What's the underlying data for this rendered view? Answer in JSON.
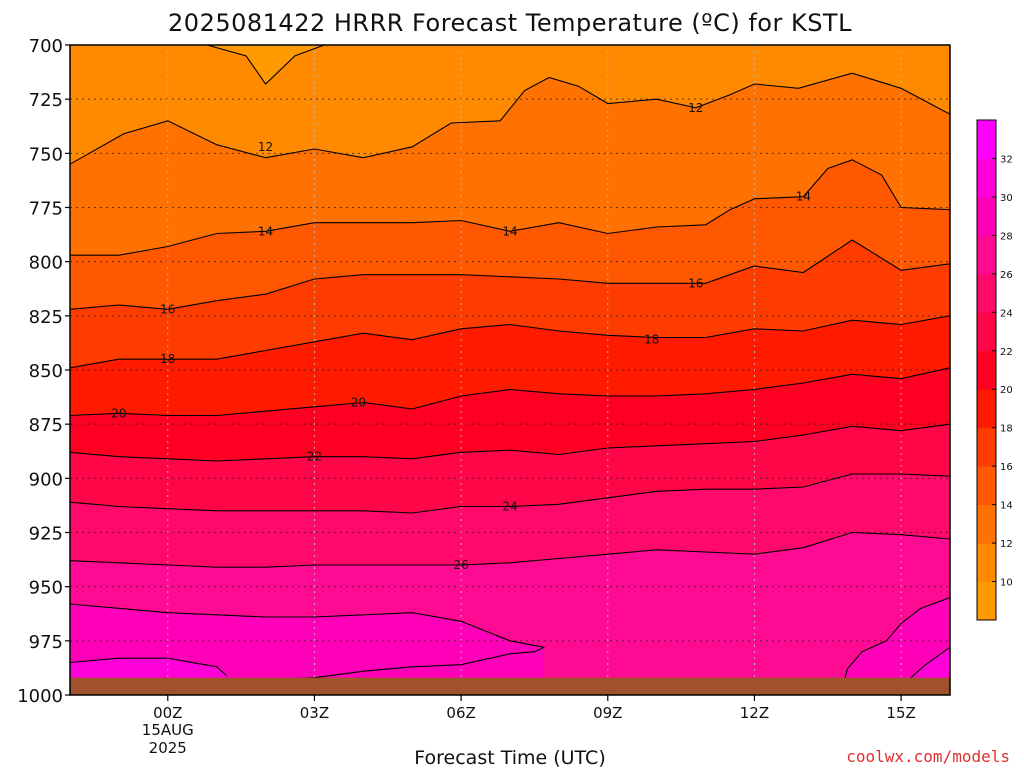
{
  "chart_data": {
    "type": "heatmap",
    "title": "2025081422 HRRR Forecast Temperature (ºC) for KSTL",
    "xlabel": "Forecast Time (UTC)",
    "ylabel": "",
    "credit": "coolwx.com/models",
    "x_ticks": [
      {
        "x": 0,
        "label": "00Z",
        "sublabel1": "15AUG",
        "sublabel2": "2025"
      },
      {
        "x": 3,
        "label": "03Z"
      },
      {
        "x": 6,
        "label": "06Z"
      },
      {
        "x": 9,
        "label": "09Z"
      },
      {
        "x": 12,
        "label": "12Z"
      },
      {
        "x": 15,
        "label": "15Z"
      }
    ],
    "xlim": [
      -2,
      16
    ],
    "y_ticks": [
      700,
      725,
      750,
      775,
      800,
      825,
      850,
      875,
      900,
      925,
      950,
      975,
      1000
    ],
    "ylim": [
      700,
      1000
    ],
    "grid": true,
    "colorbar": {
      "placement": "right",
      "ticks": [
        10,
        12,
        14,
        16,
        18,
        20,
        22,
        24,
        26,
        28,
        30,
        32
      ],
      "colors": [
        "#ff9a00",
        "#ff8a00",
        "#ff7100",
        "#ff5800",
        "#ff3c00",
        "#ff1a00",
        "#ff0022",
        "#ff0648",
        "#ff0a6a",
        "#ff0a92",
        "#ff00b8",
        "#ff00d8",
        "#ff00ff"
      ]
    },
    "contours": [
      {
        "level": 12,
        "label": "12",
        "label_points": [
          [
            2.0,
            747
          ],
          [
            10.8,
            729
          ]
        ],
        "points": [
          [
            -2,
            755
          ],
          [
            -0.9,
            741
          ],
          [
            0,
            735
          ],
          [
            1,
            746
          ],
          [
            2,
            752
          ],
          [
            3,
            748
          ],
          [
            4,
            752
          ],
          [
            5,
            747
          ],
          [
            5.8,
            736
          ],
          [
            6.8,
            735
          ],
          [
            7.3,
            721
          ],
          [
            7.8,
            715
          ],
          [
            8.4,
            719
          ],
          [
            9,
            727
          ],
          [
            10,
            725
          ],
          [
            10.8,
            729
          ],
          [
            11.5,
            723
          ],
          [
            12,
            718
          ],
          [
            12.9,
            720
          ],
          [
            14,
            713
          ],
          [
            15,
            720
          ],
          [
            16,
            732
          ]
        ]
      },
      {
        "level": 12,
        "label": "",
        "label_points": [],
        "points": [
          [
            0.8,
            700
          ],
          [
            1.6,
            705
          ],
          [
            2.0,
            718
          ],
          [
            2.6,
            705
          ],
          [
            3.2,
            700
          ]
        ]
      },
      {
        "level": 14,
        "label": "14",
        "label_points": [
          [
            2.0,
            786
          ],
          [
            7.0,
            786
          ],
          [
            13.0,
            770
          ]
        ],
        "points": [
          [
            -2,
            797
          ],
          [
            -1,
            797
          ],
          [
            0,
            793
          ],
          [
            1,
            787
          ],
          [
            2,
            786
          ],
          [
            3,
            782
          ],
          [
            4,
            782
          ],
          [
            5,
            782
          ],
          [
            6,
            781
          ],
          [
            7,
            786
          ],
          [
            8,
            782
          ],
          [
            9,
            787
          ],
          [
            10,
            784
          ],
          [
            11,
            783
          ],
          [
            11.5,
            776
          ],
          [
            12,
            771
          ],
          [
            13,
            770
          ],
          [
            13.5,
            757
          ],
          [
            14,
            753
          ],
          [
            14.6,
            760
          ],
          [
            15,
            775
          ],
          [
            16,
            776
          ]
        ]
      },
      {
        "level": 16,
        "label": "16",
        "label_points": [
          [
            0.0,
            822
          ],
          [
            10.8,
            810
          ]
        ],
        "points": [
          [
            -2,
            822
          ],
          [
            -1,
            820
          ],
          [
            0,
            822
          ],
          [
            1,
            818
          ],
          [
            2,
            815
          ],
          [
            3,
            808
          ],
          [
            4,
            806
          ],
          [
            5,
            806
          ],
          [
            6,
            806
          ],
          [
            7,
            807
          ],
          [
            8,
            808
          ],
          [
            9,
            810
          ],
          [
            10,
            810
          ],
          [
            11,
            810
          ],
          [
            12,
            802
          ],
          [
            13,
            805
          ],
          [
            14,
            790
          ],
          [
            15,
            804
          ],
          [
            16,
            801
          ]
        ]
      },
      {
        "level": 18,
        "label": "18",
        "label_points": [
          [
            0.0,
            845
          ],
          [
            9.9,
            836
          ]
        ],
        "points": [
          [
            -2,
            849
          ],
          [
            -1,
            845
          ],
          [
            0,
            845
          ],
          [
            1,
            845
          ],
          [
            2,
            841
          ],
          [
            3,
            837
          ],
          [
            4,
            833
          ],
          [
            5,
            836
          ],
          [
            6,
            831
          ],
          [
            7,
            829
          ],
          [
            8,
            832
          ],
          [
            9,
            834
          ],
          [
            10,
            835
          ],
          [
            11,
            835
          ],
          [
            12,
            831
          ],
          [
            13,
            832
          ],
          [
            14,
            827
          ],
          [
            15,
            829
          ],
          [
            16,
            825
          ]
        ]
      },
      {
        "level": 20,
        "label": "20",
        "label_points": [
          [
            -1.0,
            870
          ],
          [
            3.9,
            865
          ]
        ],
        "points": [
          [
            -2,
            871
          ],
          [
            -1,
            870
          ],
          [
            0,
            871
          ],
          [
            1,
            871
          ],
          [
            2,
            869
          ],
          [
            3,
            867
          ],
          [
            4,
            865
          ],
          [
            5,
            868
          ],
          [
            6,
            862
          ],
          [
            7,
            859
          ],
          [
            8,
            861
          ],
          [
            9,
            862
          ],
          [
            10,
            862
          ],
          [
            11,
            861
          ],
          [
            12,
            859
          ],
          [
            13,
            856
          ],
          [
            14,
            852
          ],
          [
            15,
            854
          ],
          [
            16,
            849
          ]
        ]
      },
      {
        "level": 22,
        "label": "22",
        "label_points": [
          [
            3.0,
            890
          ]
        ],
        "points": [
          [
            -2,
            888
          ],
          [
            -1,
            890
          ],
          [
            0,
            891
          ],
          [
            1,
            892
          ],
          [
            2,
            891
          ],
          [
            3,
            890
          ],
          [
            4,
            890
          ],
          [
            5,
            891
          ],
          [
            6,
            888
          ],
          [
            7,
            887
          ],
          [
            8,
            889
          ],
          [
            9,
            886
          ],
          [
            10,
            885
          ],
          [
            11,
            884
          ],
          [
            12,
            883
          ],
          [
            13,
            880
          ],
          [
            14,
            876
          ],
          [
            15,
            878
          ],
          [
            16,
            875
          ]
        ]
      },
      {
        "level": 24,
        "label": "24",
        "label_points": [
          [
            7.0,
            913
          ]
        ],
        "points": [
          [
            -2,
            911
          ],
          [
            -1,
            913
          ],
          [
            0,
            914
          ],
          [
            1,
            915
          ],
          [
            2,
            915
          ],
          [
            3,
            915
          ],
          [
            4,
            915
          ],
          [
            5,
            916
          ],
          [
            6,
            913
          ],
          [
            7,
            913
          ],
          [
            8,
            912
          ],
          [
            9,
            909
          ],
          [
            10,
            906
          ],
          [
            11,
            905
          ],
          [
            12,
            905
          ],
          [
            13,
            904
          ],
          [
            14,
            898
          ],
          [
            15,
            898
          ],
          [
            16,
            899
          ]
        ]
      },
      {
        "level": 26,
        "label": "26",
        "label_points": [
          [
            6.0,
            940
          ]
        ],
        "points": [
          [
            -2,
            938
          ],
          [
            -1,
            939
          ],
          [
            0,
            940
          ],
          [
            1,
            941
          ],
          [
            2,
            941
          ],
          [
            3,
            940
          ],
          [
            4,
            940
          ],
          [
            5,
            940
          ],
          [
            6,
            940
          ],
          [
            7,
            939
          ],
          [
            8,
            937
          ],
          [
            9,
            935
          ],
          [
            10,
            933
          ],
          [
            11,
            934
          ],
          [
            12,
            935
          ],
          [
            13,
            932
          ],
          [
            14,
            925
          ],
          [
            15,
            926
          ],
          [
            16,
            928
          ]
        ]
      },
      {
        "level": 28,
        "label": "",
        "label_points": [],
        "points": [
          [
            -2,
            958
          ],
          [
            -1,
            960
          ],
          [
            0,
            962
          ],
          [
            1,
            963
          ],
          [
            2,
            964
          ],
          [
            3,
            964
          ],
          [
            4,
            963
          ],
          [
            5,
            962
          ],
          [
            6,
            966
          ],
          [
            7,
            975
          ],
          [
            7.7,
            978
          ]
        ]
      },
      {
        "level": 28,
        "label": "",
        "label_points": [],
        "points": [
          [
            7.7,
            978
          ],
          [
            7.5,
            980
          ],
          [
            7,
            981
          ],
          [
            6,
            986
          ],
          [
            5,
            987
          ],
          [
            4,
            989
          ],
          [
            3,
            992
          ],
          [
            2,
            993
          ],
          [
            1,
            993
          ]
        ]
      },
      {
        "level": 28,
        "label": "",
        "label_points": [],
        "points": [
          [
            8,
            996
          ],
          [
            9,
            995
          ],
          [
            10,
            994
          ],
          [
            11,
            995
          ],
          [
            12,
            995
          ],
          [
            12.5,
            997
          ],
          [
            13,
            998
          ]
        ]
      },
      {
        "level": 28,
        "label": "",
        "label_points": [],
        "points": [
          [
            16,
            955
          ],
          [
            15.4,
            960
          ],
          [
            15,
            967
          ],
          [
            14.7,
            975
          ],
          [
            14.2,
            980
          ],
          [
            13.9,
            988
          ],
          [
            13.8,
            997
          ],
          [
            13.5,
            998
          ]
        ]
      },
      {
        "level": 30,
        "label": "",
        "label_points": [],
        "points": [
          [
            -2,
            985
          ],
          [
            -1,
            983
          ],
          [
            0,
            983
          ],
          [
            1,
            987
          ],
          [
            1.2,
            991
          ]
        ]
      },
      {
        "level": 30,
        "label": "",
        "label_points": [],
        "points": [
          [
            16,
            978
          ],
          [
            15.5,
            986
          ],
          [
            15.2,
            992
          ],
          [
            15,
            998
          ]
        ]
      }
    ],
    "ground_level_hpa": 992,
    "ground_color": "#a0522d"
  }
}
